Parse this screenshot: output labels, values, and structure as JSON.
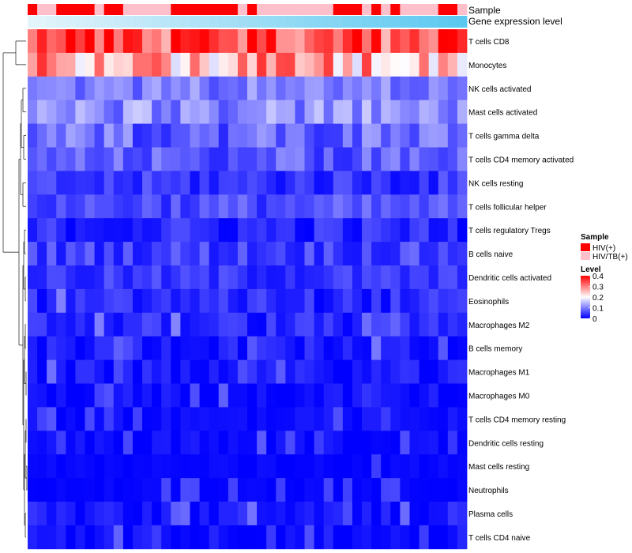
{
  "chart_data": {
    "type": "heatmap",
    "annotation_tracks": [
      "Sample",
      "Gene expression level"
    ],
    "row_labels": [
      "T cells CD8",
      "Monocytes",
      "NK cells activated",
      "Mast cells activated",
      "T cells gamma delta",
      "T cells CD4 memory activated",
      "NK cells resting",
      "T cells follicular helper",
      "T cells regulatory  Tregs",
      "B cells naive",
      "Dendritic cells activated",
      "Eosinophils",
      "Macrophages M2",
      "B cells memory",
      "Macrophages M1",
      "Macrophages M0",
      "T cells CD4 memory resting",
      "Dendritic cells resting",
      "Mast cells resting",
      "Neutrophils",
      "Plasma cells",
      "T cells CD4 naive"
    ],
    "n_samples": 46,
    "sample_groups": [
      0,
      1,
      1,
      0,
      0,
      0,
      0,
      1,
      0,
      0,
      1,
      1,
      1,
      1,
      1,
      0,
      0,
      0,
      0,
      0,
      0,
      0,
      1,
      0,
      1,
      1,
      1,
      1,
      1,
      1,
      1,
      1,
      0,
      0,
      0,
      1,
      0,
      1,
      0,
      1,
      1,
      1,
      1,
      0,
      0,
      1
    ],
    "sample_legend": {
      "title": "Sample",
      "entries": [
        {
          "label": "HIV(+)",
          "color": "#ff0000"
        },
        {
          "label": "HIV/TB(+)",
          "color": "#ffc0cb"
        }
      ]
    },
    "level_legend": {
      "title": "Level",
      "ticks": [
        "0.4",
        "0.3",
        "0.2",
        "0.1",
        "0"
      ],
      "range": [
        0,
        0.4
      ]
    },
    "gene_expression_gradient": [
      "#e4f4fb",
      "#5bc8f0"
    ],
    "color_scale": [
      "#0000ff",
      "#ffffff",
      "#ff0000"
    ],
    "row_means": [
      0.33,
      0.27,
      0.1,
      0.11,
      0.08,
      0.07,
      0.04,
      0.06,
      0.03,
      0.05,
      0.04,
      0.03,
      0.03,
      0.02,
      0.015,
      0.01,
      0.008,
      0.008,
      0.004,
      0.004,
      0.015,
      0.01
    ],
    "row_spread": [
      0.08,
      0.1,
      0.04,
      0.05,
      0.05,
      0.04,
      0.035,
      0.035,
      0.035,
      0.035,
      0.03,
      0.03,
      0.03,
      0.025,
      0.025,
      0.02,
      0.015,
      0.015,
      0.008,
      0.005,
      0.03,
      0.02
    ]
  }
}
